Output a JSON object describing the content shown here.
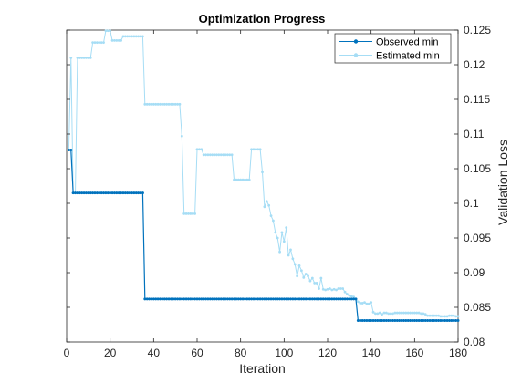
{
  "chart_data": {
    "type": "line",
    "title": "Optimization Progress",
    "xlabel": "Iteration",
    "ylabel": "Validation Loss",
    "xlim": [
      0,
      180
    ],
    "ylim": [
      0.08,
      0.125
    ],
    "xticks": [
      "0",
      "20",
      "40",
      "60",
      "80",
      "100",
      "120",
      "140",
      "160",
      "180"
    ],
    "yticks": [
      "0.08",
      "0.085",
      "0.09",
      "0.095",
      "0.1",
      "0.105",
      "0.11",
      "0.115",
      "0.12",
      "0.125"
    ],
    "y_axis_side": "right",
    "grid": false,
    "legend_position": "top-right",
    "series": [
      {
        "name": "Observed min",
        "color": "#0072BD",
        "marker": "dot",
        "segments": [
          {
            "from": 1,
            "to": 2,
            "value": 0.1077
          },
          {
            "from": 3,
            "to": 35,
            "value": 0.1015
          },
          {
            "from": 36,
            "to": 133,
            "value": 0.0862
          },
          {
            "from": 134,
            "to": 180,
            "value": 0.0831
          }
        ]
      },
      {
        "name": "Estimated min",
        "color": "#A6DDF5",
        "marker": "dot",
        "points": [
          [
            1,
            0.1077
          ],
          [
            2,
            0.121
          ],
          [
            3,
            0.1015
          ],
          [
            4,
            0.1015
          ],
          [
            5,
            0.121
          ],
          [
            6,
            0.121
          ],
          [
            7,
            0.121
          ],
          [
            8,
            0.121
          ],
          [
            9,
            0.121
          ],
          [
            10,
            0.121
          ],
          [
            11,
            0.121
          ],
          [
            12,
            0.1232
          ],
          [
            13,
            0.1232
          ],
          [
            14,
            0.1232
          ],
          [
            15,
            0.1232
          ],
          [
            16,
            0.1232
          ],
          [
            17,
            0.1232
          ],
          [
            18,
            0.1249
          ],
          [
            19,
            0.1249
          ],
          [
            20,
            0.1249
          ],
          [
            21,
            0.1235
          ],
          [
            22,
            0.1235
          ],
          [
            23,
            0.1235
          ],
          [
            24,
            0.1235
          ],
          [
            25,
            0.1235
          ],
          [
            26,
            0.1241
          ],
          [
            27,
            0.1241
          ],
          [
            28,
            0.1241
          ],
          [
            29,
            0.1241
          ],
          [
            30,
            0.1241
          ],
          [
            31,
            0.1241
          ],
          [
            32,
            0.1241
          ],
          [
            33,
            0.1241
          ],
          [
            34,
            0.1241
          ],
          [
            35,
            0.1241
          ],
          [
            36,
            0.1143
          ],
          [
            37,
            0.1143
          ],
          [
            38,
            0.1143
          ],
          [
            39,
            0.1143
          ],
          [
            40,
            0.1143
          ],
          [
            41,
            0.1143
          ],
          [
            42,
            0.1143
          ],
          [
            43,
            0.1143
          ],
          [
            44,
            0.1143
          ],
          [
            45,
            0.1143
          ],
          [
            46,
            0.1143
          ],
          [
            47,
            0.1143
          ],
          [
            48,
            0.1143
          ],
          [
            49,
            0.1143
          ],
          [
            50,
            0.1143
          ],
          [
            51,
            0.1143
          ],
          [
            52,
            0.1143
          ],
          [
            53,
            0.1097
          ],
          [
            54,
            0.0985
          ],
          [
            55,
            0.0985
          ],
          [
            56,
            0.0985
          ],
          [
            57,
            0.0985
          ],
          [
            58,
            0.0985
          ],
          [
            59,
            0.0985
          ],
          [
            60,
            0.1078
          ],
          [
            61,
            0.1078
          ],
          [
            62,
            0.1078
          ],
          [
            63,
            0.107
          ],
          [
            64,
            0.107
          ],
          [
            65,
            0.107
          ],
          [
            66,
            0.107
          ],
          [
            67,
            0.107
          ],
          [
            68,
            0.107
          ],
          [
            69,
            0.107
          ],
          [
            70,
            0.107
          ],
          [
            71,
            0.107
          ],
          [
            72,
            0.107
          ],
          [
            73,
            0.107
          ],
          [
            74,
            0.107
          ],
          [
            75,
            0.107
          ],
          [
            76,
            0.107
          ],
          [
            77,
            0.1034
          ],
          [
            78,
            0.1034
          ],
          [
            79,
            0.1034
          ],
          [
            80,
            0.1034
          ],
          [
            81,
            0.1034
          ],
          [
            82,
            0.1034
          ],
          [
            83,
            0.1034
          ],
          [
            84,
            0.1034
          ],
          [
            85,
            0.1078
          ],
          [
            86,
            0.1078
          ],
          [
            87,
            0.1078
          ],
          [
            88,
            0.1078
          ],
          [
            89,
            0.1078
          ],
          [
            90,
            0.1045
          ],
          [
            91,
            0.0995
          ],
          [
            92,
            0.1003
          ],
          [
            93,
            0.0997
          ],
          [
            94,
            0.0982
          ],
          [
            95,
            0.0975
          ],
          [
            96,
            0.0958
          ],
          [
            97,
            0.095
          ],
          [
            98,
            0.093
          ],
          [
            99,
            0.0958
          ],
          [
            100,
            0.0945
          ],
          [
            101,
            0.0965
          ],
          [
            102,
            0.0925
          ],
          [
            103,
            0.0933
          ],
          [
            104,
            0.092
          ],
          [
            105,
            0.0912
          ],
          [
            106,
            0.0895
          ],
          [
            107,
            0.091
          ],
          [
            108,
            0.0903
          ],
          [
            109,
            0.0893
          ],
          [
            110,
            0.0898
          ],
          [
            111,
            0.0895
          ],
          [
            112,
            0.0888
          ],
          [
            113,
            0.0892
          ],
          [
            114,
            0.0885
          ],
          [
            115,
            0.0885
          ],
          [
            116,
            0.0877
          ],
          [
            117,
            0.0892
          ],
          [
            118,
            0.0876
          ],
          [
            119,
            0.0875
          ],
          [
            120,
            0.0876
          ],
          [
            121,
            0.0877
          ],
          [
            122,
            0.0875
          ],
          [
            123,
            0.0876
          ],
          [
            124,
            0.0875
          ],
          [
            125,
            0.0877
          ],
          [
            126,
            0.0877
          ],
          [
            127,
            0.0877
          ],
          [
            128,
            0.0872
          ],
          [
            129,
            0.0869
          ],
          [
            130,
            0.0867
          ],
          [
            131,
            0.0866
          ],
          [
            132,
            0.0865
          ],
          [
            133,
            0.0862
          ],
          [
            134,
            0.0858
          ],
          [
            135,
            0.0856
          ],
          [
            136,
            0.0856
          ],
          [
            137,
            0.0857
          ],
          [
            138,
            0.0855
          ],
          [
            139,
            0.0855
          ],
          [
            140,
            0.0857
          ],
          [
            141,
            0.0843
          ],
          [
            142,
            0.0841
          ],
          [
            143,
            0.0841
          ],
          [
            144,
            0.0842
          ],
          [
            145,
            0.084
          ],
          [
            146,
            0.0842
          ],
          [
            147,
            0.0842
          ],
          [
            148,
            0.0841
          ],
          [
            149,
            0.0841
          ],
          [
            150,
            0.0841
          ],
          [
            151,
            0.0842
          ],
          [
            152,
            0.0842
          ],
          [
            153,
            0.0842
          ],
          [
            154,
            0.0842
          ],
          [
            155,
            0.0842
          ],
          [
            156,
            0.0842
          ],
          [
            157,
            0.0842
          ],
          [
            158,
            0.0842
          ],
          [
            159,
            0.0842
          ],
          [
            160,
            0.0842
          ],
          [
            161,
            0.0842
          ],
          [
            162,
            0.0842
          ],
          [
            163,
            0.0841
          ],
          [
            164,
            0.0841
          ],
          [
            165,
            0.084
          ],
          [
            166,
            0.0838
          ],
          [
            167,
            0.0838
          ],
          [
            168,
            0.0838
          ],
          [
            169,
            0.0838
          ],
          [
            170,
            0.0838
          ],
          [
            171,
            0.0838
          ],
          [
            172,
            0.0837
          ],
          [
            173,
            0.0837
          ],
          [
            174,
            0.0837
          ],
          [
            175,
            0.0837
          ],
          [
            176,
            0.0838
          ],
          [
            177,
            0.0838
          ],
          [
            178,
            0.0838
          ],
          [
            179,
            0.0837
          ],
          [
            180,
            0.0837
          ]
        ]
      }
    ]
  }
}
